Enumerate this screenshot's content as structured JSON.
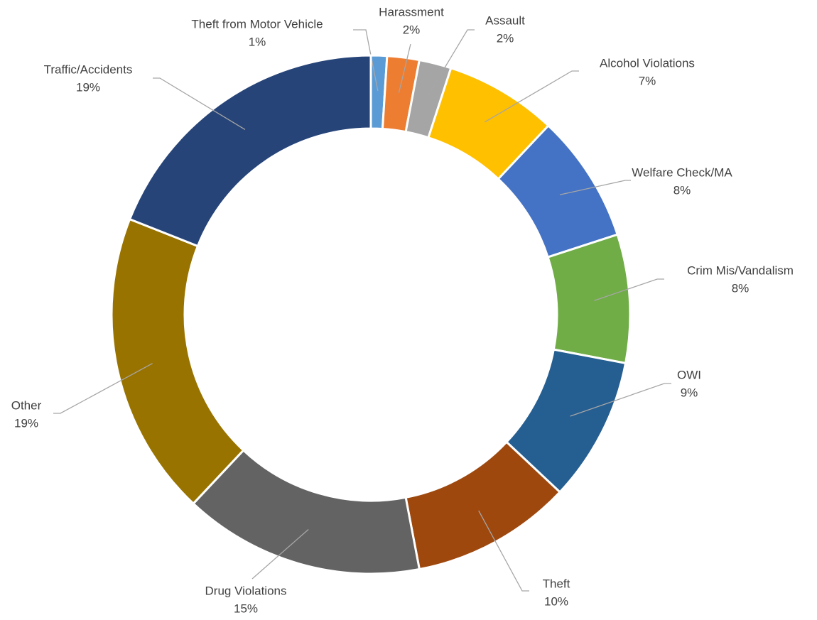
{
  "chart_data": {
    "type": "donut",
    "categories": [
      "Theft from Motor Vehicle",
      "Harassment",
      "Assault",
      "Alcohol Violations",
      "Welfare Check/MA",
      "Crim Mis/Vandalism",
      "OWI",
      "Theft",
      "Drug Violations",
      "Other",
      "Traffic/Accidents"
    ],
    "values": [
      1,
      2,
      2,
      7,
      8,
      8,
      9,
      10,
      15,
      19,
      19
    ],
    "value_labels": [
      "1%",
      "2%",
      "2%",
      "7%",
      "8%",
      "8%",
      "9%",
      "10%",
      "15%",
      "19%",
      "19%"
    ],
    "colors": [
      "#5b9bd5",
      "#ed7d31",
      "#a5a5a5",
      "#ffc000",
      "#4472c4",
      "#70ad47",
      "#255e91",
      "#9e480e",
      "#636363",
      "#997300",
      "#264478"
    ]
  }
}
